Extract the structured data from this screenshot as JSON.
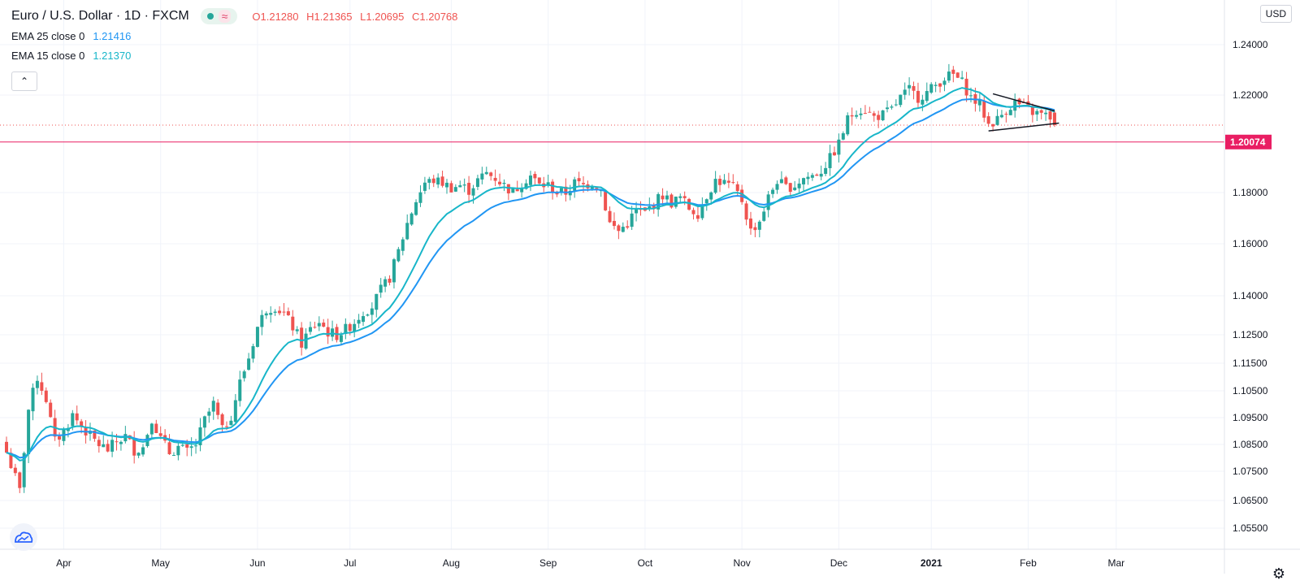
{
  "header": {
    "symbol": "Euro / U.S. Dollar · 1D · FXCM",
    "open": "O1.21280",
    "high": "H1.21365",
    "low": "L1.20695",
    "close": "C1.20768",
    "currency": "USD"
  },
  "indicators": [
    {
      "label": "EMA 25 close 0",
      "value": "1.21416",
      "color": "#2196f3"
    },
    {
      "label": "EMA 15 close 0",
      "value": "1.21370",
      "color": "#18b6c9"
    }
  ],
  "colors": {
    "up": "#26a69a",
    "down": "#ef5350",
    "price_line": "#e91e63"
  },
  "chart_data": {
    "type": "candlestick",
    "title": "Euro / U.S. Dollar · 1D · FXCM",
    "y_ticks": [
      "1.24000",
      "1.22000",
      "1.18000",
      "1.16000",
      "1.14000",
      "1.12500",
      "1.11500",
      "1.10500",
      "1.09500",
      "1.08500",
      "1.07500",
      "1.06500",
      "1.05500"
    ],
    "y_tick_values": [
      1.24,
      1.22,
      1.18,
      1.16,
      1.14,
      1.125,
      1.115,
      1.105,
      1.095,
      1.085,
      1.075,
      1.065,
      1.055
    ],
    "x_labels": [
      "Apr",
      "May",
      "Jun",
      "Jul",
      "Aug",
      "Sep",
      "Oct",
      "Nov",
      "Dec",
      "2021",
      "Feb",
      "Mar"
    ],
    "x_label_index": [
      13,
      35,
      57,
      78,
      101,
      123,
      145,
      167,
      189,
      210,
      232,
      252
    ],
    "current_price": "1.20074",
    "current_price_value": 1.20074,
    "last_close": 1.20768,
    "triangle_pattern": {
      "upper": [
        [
          224,
          1.2205
        ],
        [
          238,
          1.2135
        ]
      ],
      "lower": [
        [
          223,
          1.2053
        ],
        [
          239,
          1.2085
        ]
      ]
    },
    "close_path": [
      [
        0,
        1.082
      ],
      [
        3,
        1.068
      ],
      [
        5,
        1.098
      ],
      [
        7,
        1.11
      ],
      [
        9,
        1.102
      ],
      [
        11,
        1.086
      ],
      [
        13,
        1.09
      ],
      [
        15,
        1.096
      ],
      [
        17,
        1.092
      ],
      [
        19,
        1.088
      ],
      [
        21,
        1.085
      ],
      [
        23,
        1.083
      ],
      [
        25,
        1.086
      ],
      [
        27,
        1.088
      ],
      [
        29,
        1.083
      ],
      [
        31,
        1.084
      ],
      [
        33,
        1.095
      ],
      [
        35,
        1.087
      ],
      [
        37,
        1.082
      ],
      [
        39,
        1.084
      ],
      [
        41,
        1.082
      ],
      [
        43,
        1.085
      ],
      [
        45,
        1.094
      ],
      [
        47,
        1.1
      ],
      [
        49,
        1.09
      ],
      [
        51,
        1.096
      ],
      [
        53,
        1.108
      ],
      [
        55,
        1.117
      ],
      [
        57,
        1.128
      ],
      [
        59,
        1.135
      ],
      [
        61,
        1.136
      ],
      [
        63,
        1.133
      ],
      [
        65,
        1.128
      ],
      [
        67,
        1.122
      ],
      [
        69,
        1.127
      ],
      [
        71,
        1.13
      ],
      [
        73,
        1.126
      ],
      [
        75,
        1.125
      ],
      [
        77,
        1.127
      ],
      [
        79,
        1.13
      ],
      [
        81,
        1.134
      ],
      [
        83,
        1.136
      ],
      [
        85,
        1.142
      ],
      [
        87,
        1.147
      ],
      [
        89,
        1.157
      ],
      [
        91,
        1.168
      ],
      [
        93,
        1.177
      ],
      [
        95,
        1.184
      ],
      [
        97,
        1.185
      ],
      [
        99,
        1.184
      ],
      [
        101,
        1.182
      ],
      [
        103,
        1.183
      ],
      [
        105,
        1.181
      ],
      [
        107,
        1.185
      ],
      [
        109,
        1.188
      ],
      [
        111,
        1.186
      ],
      [
        113,
        1.183
      ],
      [
        115,
        1.18
      ],
      [
        117,
        1.184
      ],
      [
        119,
        1.187
      ],
      [
        121,
        1.183
      ],
      [
        123,
        1.183
      ],
      [
        125,
        1.18
      ],
      [
        127,
        1.18
      ],
      [
        129,
        1.184
      ],
      [
        131,
        1.183
      ],
      [
        133,
        1.184
      ],
      [
        135,
        1.181
      ],
      [
        137,
        1.168
      ],
      [
        139,
        1.165
      ],
      [
        141,
        1.168
      ],
      [
        143,
        1.173
      ],
      [
        145,
        1.172
      ],
      [
        147,
        1.176
      ],
      [
        149,
        1.179
      ],
      [
        151,
        1.176
      ],
      [
        153,
        1.178
      ],
      [
        155,
        1.174
      ],
      [
        157,
        1.172
      ],
      [
        159,
        1.179
      ],
      [
        161,
        1.185
      ],
      [
        163,
        1.184
      ],
      [
        165,
        1.182
      ],
      [
        167,
        1.177
      ],
      [
        169,
        1.165
      ],
      [
        171,
        1.169
      ],
      [
        173,
        1.178
      ],
      [
        175,
        1.185
      ],
      [
        177,
        1.182
      ],
      [
        179,
        1.183
      ],
      [
        181,
        1.186
      ],
      [
        183,
        1.187
      ],
      [
        185,
        1.189
      ],
      [
        187,
        1.194
      ],
      [
        189,
        1.2
      ],
      [
        191,
        1.21
      ],
      [
        193,
        1.214
      ],
      [
        195,
        1.214
      ],
      [
        197,
        1.211
      ],
      [
        199,
        1.212
      ],
      [
        201,
        1.214
      ],
      [
        203,
        1.219
      ],
      [
        205,
        1.222
      ],
      [
        207,
        1.219
      ],
      [
        209,
        1.221
      ],
      [
        211,
        1.224
      ],
      [
        213,
        1.227
      ],
      [
        215,
        1.228
      ],
      [
        217,
        1.225
      ],
      [
        219,
        1.219
      ],
      [
        221,
        1.216
      ],
      [
        223,
        1.208
      ],
      [
        225,
        1.21
      ],
      [
        227,
        1.214
      ],
      [
        229,
        1.217
      ],
      [
        231,
        1.215
      ],
      [
        233,
        1.213
      ],
      [
        235,
        1.212
      ],
      [
        237,
        1.211
      ],
      [
        238,
        1.2077
      ]
    ]
  }
}
